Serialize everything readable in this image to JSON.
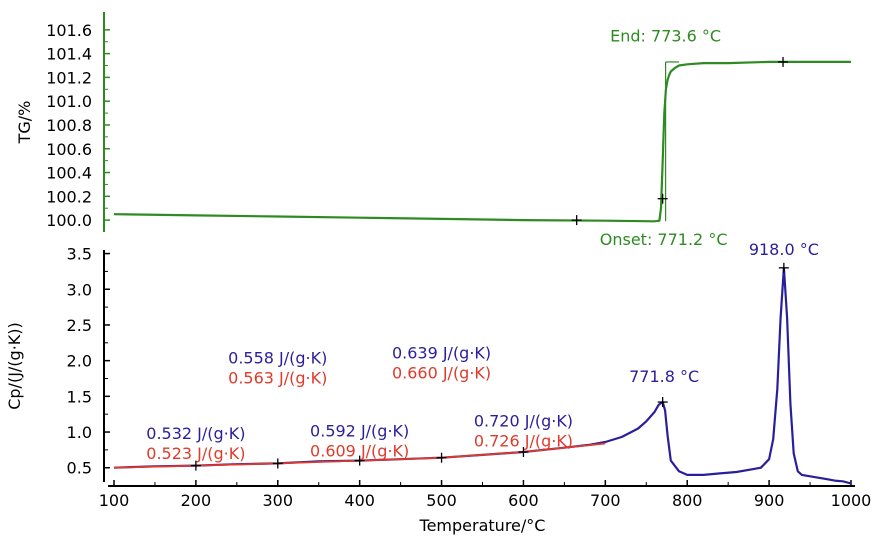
{
  "chart_data": [
    {
      "type": "line",
      "ylabel": "TG/%",
      "xlabel": "",
      "xlim": [
        100,
        1000
      ],
      "ylim": [
        99.9,
        101.75
      ],
      "yticks": [
        100.0,
        100.2,
        100.4,
        100.6,
        100.8,
        101.0,
        101.2,
        101.4,
        101.6
      ],
      "ytick_labels": [
        "100.0",
        "100.2",
        "100.4",
        "100.6",
        "100.8",
        "101.0",
        "101.2",
        "101.4",
        "101.6"
      ],
      "axis_color": "#2e8b22",
      "series": [
        {
          "color": "#2e8b22",
          "x": [
            100,
            200,
            300,
            400,
            500,
            600,
            700,
            760,
            766,
            768,
            770,
            772,
            774,
            776,
            778,
            780,
            785,
            790,
            800,
            820,
            850,
            900,
            950,
            1000
          ],
          "y": [
            100.05,
            100.04,
            100.03,
            100.02,
            100.01,
            100.0,
            99.995,
            99.99,
            99.995,
            100.1,
            100.5,
            100.9,
            101.1,
            101.18,
            101.22,
            101.25,
            101.28,
            101.3,
            101.31,
            101.32,
            101.32,
            101.33,
            101.33,
            101.33
          ]
        }
      ],
      "markers": [
        {
          "x": 665,
          "y": 100.0
        },
        {
          "x": 770,
          "y": 100.18
        },
        {
          "x": 917,
          "y": 101.33
        }
      ],
      "annotations": [
        {
          "text": "End: 773.6 °C",
          "x": 773.6,
          "y": 101.5
        },
        {
          "text": "Onset: 771.2 °C",
          "x": 771.2,
          "y": 99.79
        }
      ]
    },
    {
      "type": "line",
      "ylabel": "Cp/(J/(g·K))",
      "xlabel": "Temperature/°C",
      "xlim": [
        100,
        1000
      ],
      "ylim": [
        0.3,
        3.55
      ],
      "xticks": [
        100,
        200,
        300,
        400,
        500,
        600,
        700,
        800,
        900,
        1000
      ],
      "xtick_labels": [
        "100",
        "200",
        "300",
        "400",
        "500",
        "600",
        "700",
        "800",
        "900",
        "1000"
      ],
      "yticks": [
        0.5,
        1.0,
        1.5,
        2.0,
        2.5,
        3.0,
        3.5
      ],
      "ytick_labels": [
        "0.5",
        "1.0",
        "1.5",
        "2.0",
        "2.5",
        "3.0",
        "3.5"
      ],
      "axis_color": "#000000",
      "series": [
        {
          "color": "#2a1f9a",
          "x": [
            100,
            150,
            200,
            250,
            300,
            350,
            400,
            450,
            500,
            550,
            600,
            650,
            680,
            700,
            720,
            740,
            750,
            760,
            765,
            770,
            773,
            776,
            780,
            790,
            800,
            820,
            840,
            860,
            880,
            890,
            900,
            905,
            910,
            914,
            918,
            922,
            926,
            930,
            935,
            940,
            950,
            960,
            970,
            980,
            990,
            1000
          ],
          "y": [
            0.5,
            0.52,
            0.53,
            0.55,
            0.56,
            0.59,
            0.6,
            0.62,
            0.64,
            0.68,
            0.72,
            0.78,
            0.82,
            0.86,
            0.93,
            1.05,
            1.15,
            1.28,
            1.38,
            1.42,
            1.3,
            0.95,
            0.6,
            0.45,
            0.4,
            0.4,
            0.42,
            0.44,
            0.48,
            0.5,
            0.62,
            0.9,
            1.6,
            2.6,
            3.3,
            2.6,
            1.4,
            0.7,
            0.45,
            0.4,
            0.38,
            0.36,
            0.34,
            0.32,
            0.31,
            0.28
          ]
        },
        {
          "color": "#e03a2a",
          "x": [
            100,
            200,
            300,
            400,
            500,
            600,
            700
          ],
          "y": [
            0.5,
            0.53,
            0.56,
            0.6,
            0.64,
            0.72,
            0.84
          ]
        }
      ],
      "markers": [
        {
          "x": 200,
          "y": 0.53
        },
        {
          "x": 300,
          "y": 0.56
        },
        {
          "x": 400,
          "y": 0.6
        },
        {
          "x": 500,
          "y": 0.64
        },
        {
          "x": 600,
          "y": 0.72
        },
        {
          "x": 770,
          "y": 1.42
        },
        {
          "x": 918,
          "y": 3.3
        }
      ],
      "annotations": [
        {
          "text": "0.532 J/(g·K)",
          "color": "#2a1f9a",
          "x": 200,
          "y": 0.9
        },
        {
          "text": "0.523 J/(g·K)",
          "color": "#e03a2a",
          "x": 200,
          "y": 0.62
        },
        {
          "text": "0.558 J/(g·K)",
          "color": "#2a1f9a",
          "x": 300,
          "y": 1.96
        },
        {
          "text": "0.563 J/(g·K)",
          "color": "#e03a2a",
          "x": 300,
          "y": 1.68
        },
        {
          "text": "0.592 J/(g·K)",
          "color": "#2a1f9a",
          "x": 400,
          "y": 0.94
        },
        {
          "text": "0.609 J/(g·K)",
          "color": "#e03a2a",
          "x": 400,
          "y": 0.66
        },
        {
          "text": "0.639 J/(g·K)",
          "color": "#2a1f9a",
          "x": 500,
          "y": 2.03
        },
        {
          "text": "0.660 J/(g·K)",
          "color": "#e03a2a",
          "x": 500,
          "y": 1.75
        },
        {
          "text": "0.720 J/(g·K)",
          "color": "#2a1f9a",
          "x": 600,
          "y": 1.08
        },
        {
          "text": "0.726 J/(g·K)",
          "color": "#e03a2a",
          "x": 600,
          "y": 0.8
        },
        {
          "text": "771.8 °C",
          "color": "#2a1f9a",
          "x": 771.8,
          "y": 1.7
        },
        {
          "text": "918.0 °C",
          "color": "#2a1f9a",
          "x": 918,
          "y": 3.48
        }
      ]
    }
  ]
}
